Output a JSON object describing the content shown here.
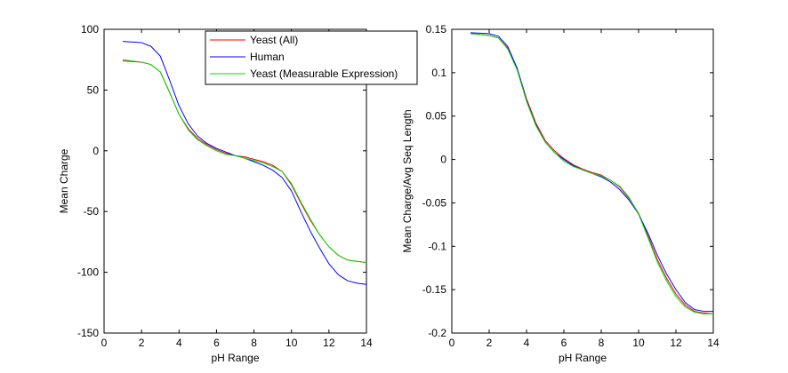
{
  "chart_data": [
    {
      "type": "line",
      "xlabel": "pH Range",
      "ylabel": "Mean Charge",
      "xlim": [
        0,
        14
      ],
      "ylim": [
        -150,
        100
      ],
      "xticks": [
        0,
        2,
        4,
        6,
        8,
        10,
        12,
        14
      ],
      "yticks": [
        -150,
        -100,
        -50,
        0,
        50,
        100
      ],
      "legend_position": "top-right",
      "series": [
        {
          "name": "Yeast (All)",
          "color": "#ff0000",
          "x": [
            1,
            2,
            2.5,
            3,
            3.5,
            4,
            4.5,
            5,
            5.5,
            6,
            6.5,
            7,
            7.5,
            8,
            8.5,
            9,
            9.5,
            10,
            10.5,
            11,
            11.5,
            12,
            12.5,
            13,
            13.5,
            14
          ],
          "y": [
            74,
            73,
            71,
            65,
            48,
            30,
            18,
            10,
            5,
            1,
            -2,
            -4,
            -5,
            -7,
            -9,
            -12,
            -17,
            -28,
            -43,
            -57,
            -69,
            -79,
            -86,
            -90,
            -91,
            -92
          ]
        },
        {
          "name": "Human",
          "color": "#0000ff",
          "x": [
            1,
            2,
            2.5,
            3,
            3.5,
            4,
            4.5,
            5,
            5.5,
            6,
            6.5,
            7,
            7.5,
            8,
            8.5,
            9,
            9.5,
            10,
            10.5,
            11,
            11.5,
            12,
            12.5,
            13,
            13.5,
            14
          ],
          "y": [
            90,
            89,
            86,
            78,
            58,
            37,
            22,
            12,
            6,
            2,
            -1,
            -4,
            -6,
            -9,
            -12,
            -16,
            -22,
            -33,
            -50,
            -66,
            -80,
            -93,
            -102,
            -107,
            -109,
            -110
          ]
        },
        {
          "name": "Yeast (Measurable Expression)",
          "color": "#00dd00",
          "x": [
            1,
            2,
            2.5,
            3,
            3.5,
            4,
            4.5,
            5,
            5.5,
            6,
            6.5,
            7,
            7.5,
            8,
            8.5,
            9,
            9.5,
            10,
            10.5,
            11,
            11.5,
            12,
            12.5,
            13,
            13.5,
            14
          ],
          "y": [
            75,
            73,
            71,
            65,
            48,
            30,
            17,
            9,
            4,
            0,
            -3,
            -4,
            -6,
            -8,
            -10,
            -13,
            -17,
            -27,
            -42,
            -56,
            -69,
            -79,
            -86,
            -90,
            -91,
            -92
          ]
        }
      ]
    },
    {
      "type": "line",
      "xlabel": "pH Range",
      "ylabel": "Mean Charge/Avg Seq Length",
      "xlim": [
        0,
        14
      ],
      "ylim": [
        -0.2,
        0.15
      ],
      "xticks": [
        0,
        2,
        4,
        6,
        8,
        10,
        12,
        14
      ],
      "yticks": [
        -0.2,
        -0.15,
        -0.1,
        -0.05,
        0,
        0.05,
        0.1,
        0.15
      ],
      "ytick_labels": [
        "-0.2",
        "-0.15",
        "-0.1",
        "-0.05",
        "0",
        "0.05",
        "0.1",
        "0.15"
      ],
      "series": [
        {
          "color": "#ff0000",
          "x": [
            1,
            2,
            2.5,
            3,
            3.5,
            4,
            4.5,
            5,
            5.5,
            6,
            6.5,
            7,
            7.5,
            8,
            8.5,
            9,
            9.5,
            10,
            10.5,
            11,
            11.5,
            12,
            12.5,
            13,
            13.5,
            14
          ],
          "y": [
            0.145,
            0.143,
            0.14,
            0.128,
            0.105,
            0.07,
            0.042,
            0.022,
            0.01,
            0.001,
            -0.006,
            -0.011,
            -0.015,
            -0.018,
            -0.024,
            -0.032,
            -0.045,
            -0.062,
            -0.088,
            -0.115,
            -0.137,
            -0.155,
            -0.168,
            -0.175,
            -0.177,
            -0.178
          ]
        },
        {
          "color": "#0000ff",
          "x": [
            1,
            2,
            2.5,
            3,
            3.5,
            4,
            4.5,
            5,
            5.5,
            6,
            6.5,
            7,
            7.5,
            8,
            8.5,
            9,
            9.5,
            10,
            10.5,
            11,
            11.5,
            12,
            12.5,
            13,
            13.5,
            14
          ],
          "y": [
            0.146,
            0.145,
            0.142,
            0.13,
            0.105,
            0.068,
            0.04,
            0.02,
            0.008,
            0.0,
            -0.007,
            -0.012,
            -0.016,
            -0.02,
            -0.026,
            -0.035,
            -0.047,
            -0.063,
            -0.085,
            -0.11,
            -0.132,
            -0.15,
            -0.165,
            -0.173,
            -0.175,
            -0.175
          ]
        },
        {
          "color": "#00dd00",
          "x": [
            1,
            2,
            2.5,
            3,
            3.5,
            4,
            4.5,
            5,
            5.5,
            6,
            6.5,
            7,
            7.5,
            8,
            8.5,
            9,
            9.5,
            10,
            10.5,
            11,
            11.5,
            12,
            12.5,
            13,
            13.5,
            14
          ],
          "y": [
            0.145,
            0.143,
            0.14,
            0.127,
            0.103,
            0.067,
            0.039,
            0.02,
            0.008,
            -0.002,
            -0.008,
            -0.012,
            -0.016,
            -0.019,
            -0.024,
            -0.031,
            -0.044,
            -0.063,
            -0.09,
            -0.118,
            -0.14,
            -0.158,
            -0.17,
            -0.176,
            -0.178,
            -0.178
          ]
        }
      ]
    }
  ]
}
